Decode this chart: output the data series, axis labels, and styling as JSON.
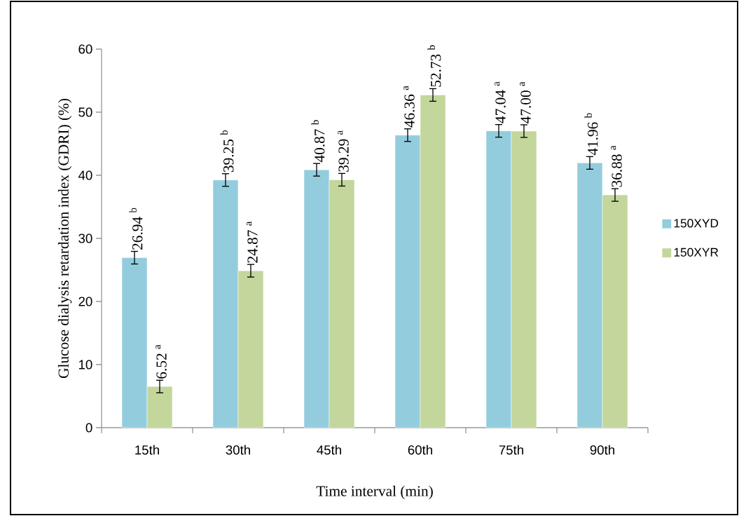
{
  "chart_data": {
    "type": "bar",
    "xlabel": "Time interval (min)",
    "ylabel": "Glucose dialysis retardation index (GDRI) (%)",
    "categories": [
      "15th",
      "30th",
      "45th",
      "60th",
      "75th",
      "90th"
    ],
    "series": [
      {
        "name": "150XYD",
        "color": "#93cddd",
        "values": [
          26.94,
          39.25,
          40.87,
          46.36,
          47.04,
          41.96
        ],
        "errors": [
          1,
          1,
          1,
          1,
          1,
          1
        ],
        "value_labels": [
          "26.94 $^{b}$",
          "39.25 $^{b}$",
          "40.87 $^{b}$",
          "46.36 $^{a}$",
          "47.04 $^{a}$",
          "41.96 $^{b}$"
        ]
      },
      {
        "name": "150XYR",
        "color": "#c3d69b",
        "values": [
          6.52,
          24.87,
          39.29,
          52.73,
          47.0,
          36.88
        ],
        "errors": [
          1,
          1,
          1,
          1,
          1,
          1
        ],
        "value_labels": [
          "6.52 $^{a}$",
          "24.87 $^{a}$",
          "39.29 $^{a}$",
          "52.73 $^{b}$",
          "47.00 $^{a}$",
          "36.88 $^{a}$"
        ]
      }
    ],
    "ylim": [
      0,
      60
    ],
    "yticks": [
      0,
      10,
      20,
      30,
      40,
      50,
      60
    ],
    "legend": "right"
  }
}
